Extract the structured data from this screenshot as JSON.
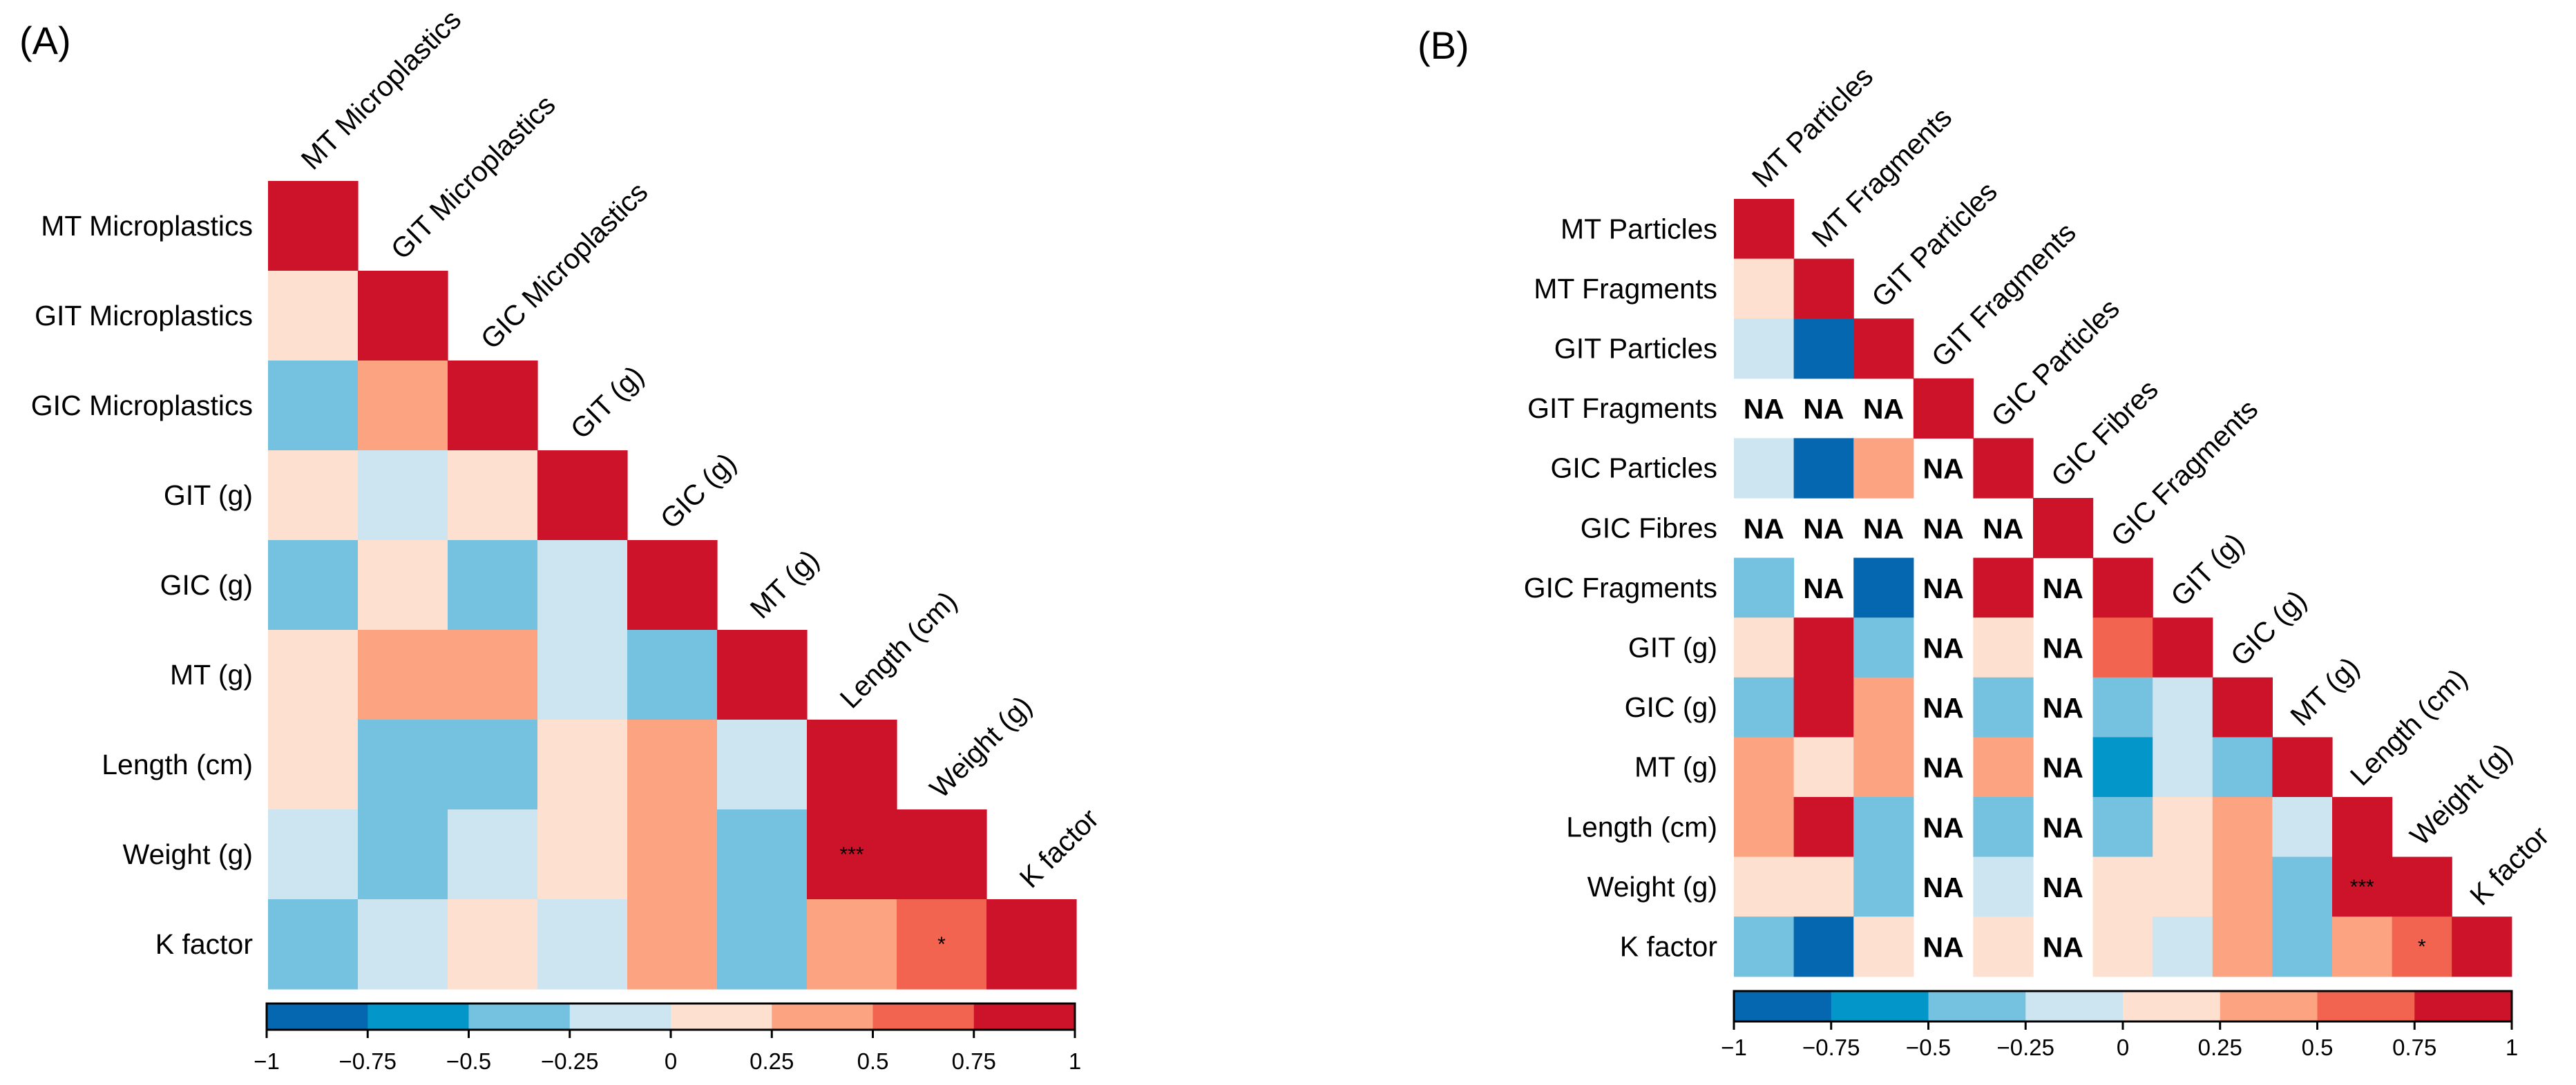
{
  "chart_data": [
    {
      "type": "heatmap",
      "panel_label": "(A)",
      "variables": [
        "MT Microplastics",
        "GIT Microplastics",
        "GIC Microplastics",
        "GIT (g)",
        "GIC (g)",
        "MT (g)",
        "Length (cm)",
        "Weight (g)",
        "K factor"
      ],
      "shape": "lower-triangular correlation matrix",
      "matrix": [
        [
          1
        ],
        [
          0.2,
          1
        ],
        [
          -0.4,
          0.4,
          1
        ],
        [
          0.2,
          -0.1,
          0.2,
          1
        ],
        [
          -0.4,
          0.2,
          -0.4,
          -0.1,
          1
        ],
        [
          0.2,
          0.4,
          0.4,
          -0.1,
          -0.4,
          1
        ],
        [
          0.2,
          -0.4,
          -0.4,
          0.1,
          0.4,
          -0.1,
          1
        ],
        [
          -0.1,
          -0.4,
          -0.1,
          0.1,
          0.4,
          -0.4,
          0.9,
          1
        ],
        [
          -0.4,
          -0.1,
          0.1,
          -0.1,
          0.4,
          -0.4,
          0.4,
          0.6,
          1
        ]
      ],
      "significance": [
        {
          "row": "Weight (g)",
          "col": "Length (cm)",
          "label": "***"
        },
        {
          "row": "K factor",
          "col": "Weight (g)",
          "label": "*"
        }
      ],
      "colorbar": {
        "range": [
          -1,
          1
        ],
        "ticks": [
          -1,
          -0.75,
          -0.5,
          -0.25,
          0,
          0.25,
          0.5,
          0.75,
          1
        ],
        "tick_labels": [
          "−1",
          "−0.75",
          "−0.5",
          "−0.25",
          "0",
          "0.25",
          "0.5",
          "0.75",
          "1"
        ]
      }
    },
    {
      "type": "heatmap",
      "panel_label": "(B)",
      "variables": [
        "MT Particles",
        "MT Fragments",
        "GIT Particles",
        "GIT Fragments",
        "GIC Particles",
        "GIC Fibres",
        "GIC Fragments",
        "GIT (g)",
        "GIC (g)",
        "MT (g)",
        "Length (cm)",
        "Weight (g)",
        "K factor"
      ],
      "shape": "lower-triangular correlation matrix",
      "na_label": "NA",
      "matrix": [
        [
          1
        ],
        [
          0.2,
          1
        ],
        [
          -0.1,
          -0.9,
          1
        ],
        [
          "NA",
          "NA",
          "NA",
          1
        ],
        [
          -0.1,
          -0.9,
          0.4,
          "NA",
          1
        ],
        [
          "NA",
          "NA",
          "NA",
          "NA",
          "NA",
          1
        ],
        [
          -0.4,
          "NA",
          -0.9,
          "NA",
          1,
          "NA",
          1
        ],
        [
          0.2,
          1,
          -0.4,
          "NA",
          0.2,
          "NA",
          0.6,
          1
        ],
        [
          -0.4,
          1,
          0.4,
          "NA",
          -0.4,
          "NA",
          -0.4,
          -0.1,
          1
        ],
        [
          0.4,
          0.2,
          0.4,
          "NA",
          0.4,
          "NA",
          -0.7,
          -0.1,
          -0.4,
          1
        ],
        [
          0.4,
          1,
          -0.4,
          "NA",
          -0.4,
          "NA",
          -0.4,
          0.1,
          0.4,
          -0.1,
          1
        ],
        [
          0.1,
          0.1,
          -0.4,
          "NA",
          -0.1,
          "NA",
          0.1,
          0.1,
          0.4,
          -0.4,
          0.9,
          1
        ],
        [
          -0.4,
          -0.9,
          0.1,
          "NA",
          0.1,
          "NA",
          0.1,
          -0.1,
          0.4,
          -0.4,
          0.4,
          0.6,
          1
        ]
      ],
      "significance": [
        {
          "row": "Weight (g)",
          "col": "Length (cm)",
          "label": "***"
        },
        {
          "row": "K factor",
          "col": "Weight (g)",
          "label": "*"
        }
      ],
      "colorbar": {
        "range": [
          -1,
          1
        ],
        "ticks": [
          -1,
          -0.75,
          -0.5,
          -0.25,
          0,
          0.25,
          0.5,
          0.75,
          1
        ],
        "tick_labels": [
          "−1",
          "−0.75",
          "−0.5",
          "−0.25",
          "0",
          "0.25",
          "0.5",
          "0.75",
          "1"
        ]
      }
    }
  ],
  "palette": {
    "bins": [
      "#0567b0",
      "#0396c9",
      "#74c2df",
      "#cde5f0",
      "#fde0d0",
      "#fca482",
      "#f26450",
      "#cc1329"
    ],
    "outline": "#000000"
  }
}
